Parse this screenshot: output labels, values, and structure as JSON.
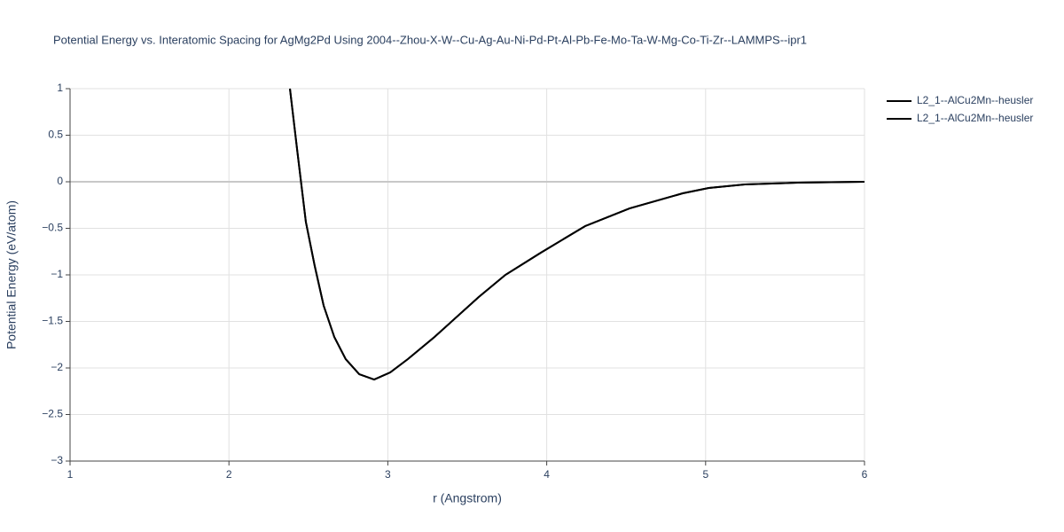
{
  "chart_data": {
    "type": "line",
    "title": "Potential Energy vs. Interatomic Spacing for AgMg2Pd Using 2004--Zhou-X-W--Cu-Ag-Au-Ni-Pd-Pt-Al-Pb-Fe-Mo-Ta-W-Mg-Co-Ti-Zr--LAMMPS--ipr1",
    "x_label": "r (Angstrom)",
    "y_label": "Potential Energy (eV/atom)",
    "x": [
      2.384,
      2.43,
      2.484,
      2.54,
      2.596,
      2.663,
      2.735,
      2.82,
      2.914,
      3.015,
      3.126,
      3.294,
      3.572,
      3.74,
      3.963,
      4.242,
      4.521,
      4.856,
      5.02,
      5.247,
      5.58,
      6.0
    ],
    "series": [
      {
        "name": "L2_1--AlCu2Mn--heusler",
        "color": "#000000",
        "values": [
          1.0,
          0.333,
          -0.43,
          -0.905,
          -1.33,
          -1.667,
          -1.905,
          -2.067,
          -2.124,
          -2.048,
          -1.905,
          -1.667,
          -1.238,
          -1.0,
          -0.762,
          -0.476,
          -0.286,
          -0.124,
          -0.067,
          -0.029,
          -0.01,
          0.0
        ]
      },
      {
        "name": "L2_1--AlCu2Mn--heusler",
        "color": "#000000",
        "values": [
          1.0,
          0.333,
          -0.43,
          -0.905,
          -1.33,
          -1.667,
          -1.905,
          -2.067,
          -2.124,
          -2.048,
          -1.905,
          -1.667,
          -1.238,
          -1.0,
          -0.762,
          -0.476,
          -0.286,
          -0.124,
          -0.067,
          -0.029,
          -0.01,
          0.0
        ]
      }
    ],
    "xlim": [
      1,
      6
    ],
    "ylim": [
      -3,
      1
    ],
    "xticks": [
      1,
      2,
      3,
      4,
      5,
      6
    ],
    "yticks": [
      1,
      0.5,
      0,
      {
        "value": -0.5,
        "label": "−0.5"
      },
      {
        "value": -1,
        "label": "−1"
      },
      {
        "value": -1.5,
        "label": "−1.5"
      },
      {
        "value": -2,
        "label": "−2"
      },
      {
        "value": -2.5,
        "label": "−2.5"
      },
      {
        "value": -3,
        "label": "−3"
      }
    ],
    "grid": true,
    "legend": "right"
  }
}
